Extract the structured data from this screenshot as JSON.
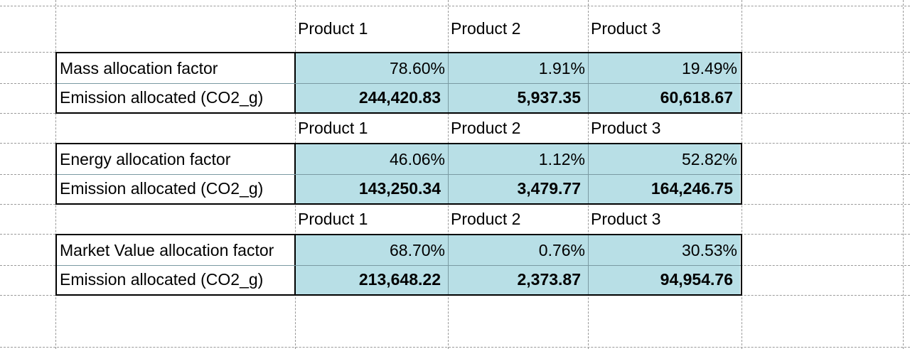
{
  "sheet": {
    "blocks": [
      {
        "headers": [
          "Product 1",
          "Product 2",
          "Product 3"
        ],
        "factor_label": "Mass allocation factor",
        "factor_values": [
          "78.60%",
          "1.91%",
          "19.49%"
        ],
        "emission_label": "Emission allocated (CO2_g)",
        "emission_values": [
          "244,420.83",
          "5,937.35",
          "60,618.67"
        ]
      },
      {
        "headers": [
          "Product 1",
          "Product 2",
          "Product 3"
        ],
        "factor_label": "Energy allocation factor",
        "factor_values": [
          "46.06%",
          "1.12%",
          "52.82%"
        ],
        "emission_label": "Emission allocated (CO2_g)",
        "emission_values": [
          "143,250.34",
          "3,479.77",
          "164,246.75"
        ]
      },
      {
        "headers": [
          "Product 1",
          "Product 2",
          "Product 3"
        ],
        "factor_label": "Market Value allocation factor",
        "factor_values": [
          "68.70%",
          "0.76%",
          "30.53%"
        ],
        "emission_label": "Emission allocated (CO2_g)",
        "emission_values": [
          "213,648.22",
          "2,373.87",
          "94,954.76"
        ]
      }
    ]
  },
  "colors": {
    "value_fill": "#b8dfe6",
    "gridline": "#9a9a9a",
    "border": "#000000"
  }
}
